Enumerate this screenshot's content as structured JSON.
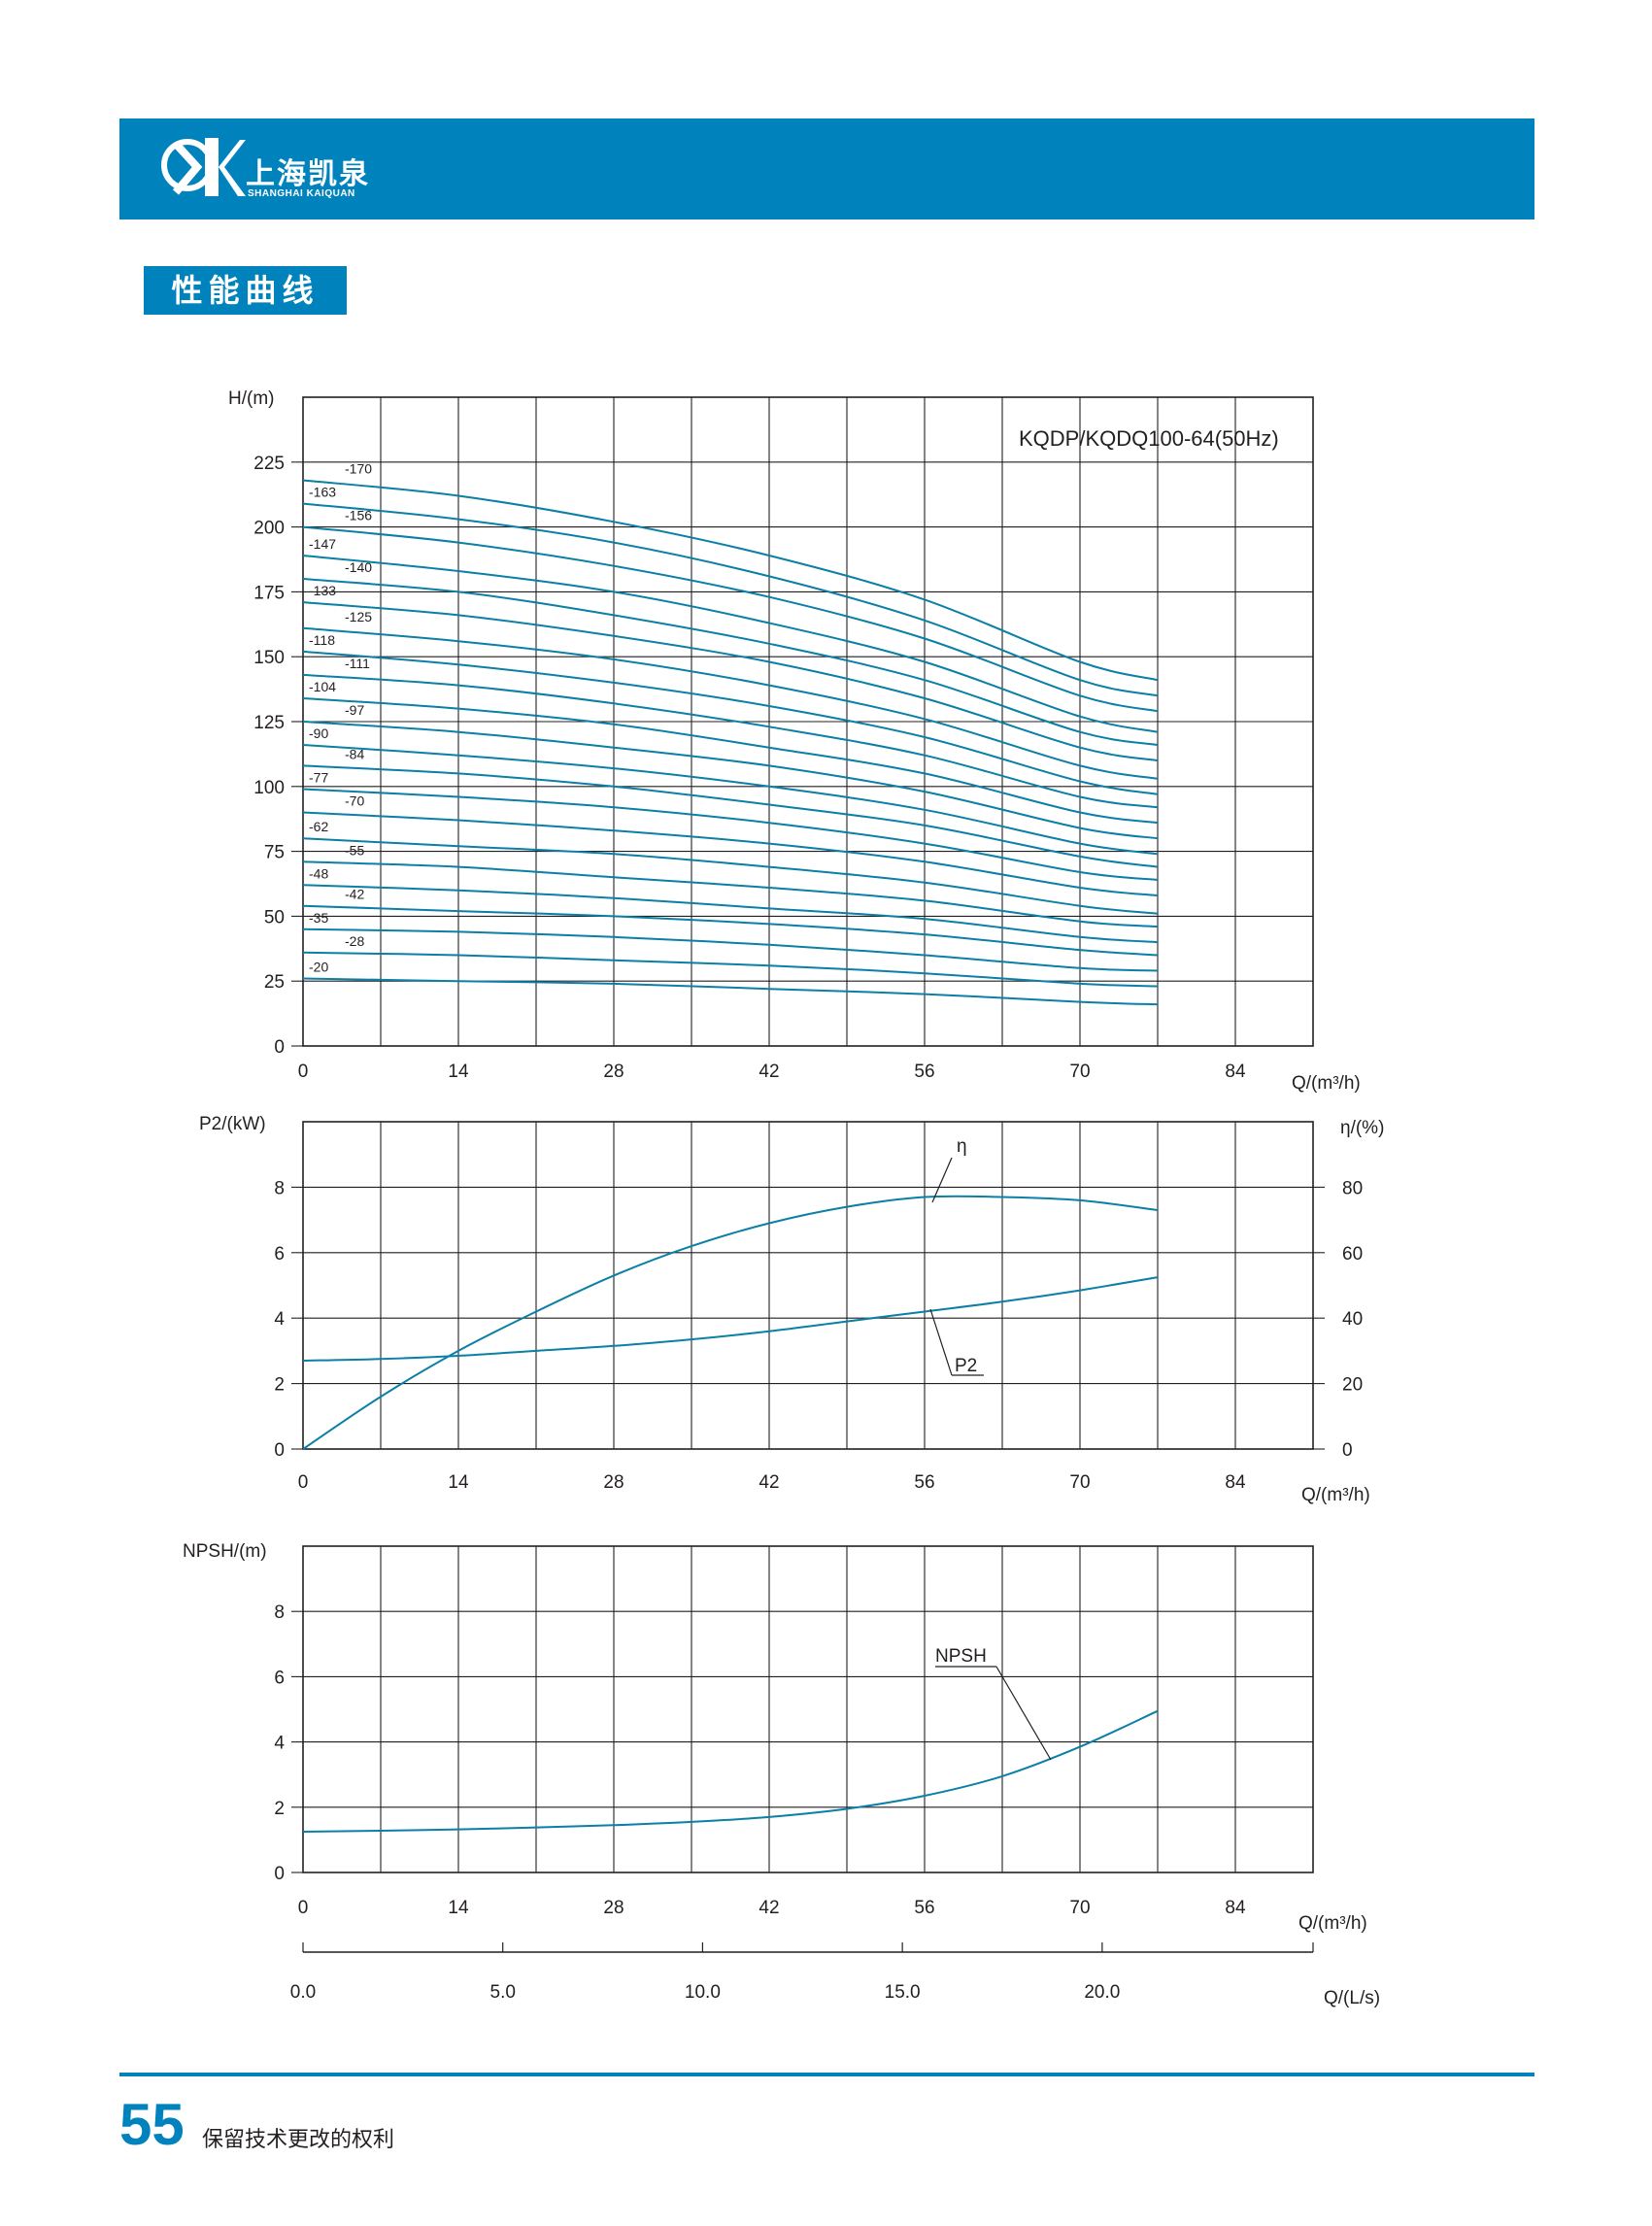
{
  "header": {
    "brand_cn": "上海凯泉",
    "brand_en": "SHANGHAI KAIQUAN",
    "logo_icon": "kaiquan-logo-icon",
    "accent_color": "#0083bd"
  },
  "section_title": "性能曲线",
  "footer": {
    "page_number": "55",
    "note": "保留技术更改的权利"
  },
  "chart_data": [
    {
      "type": "line",
      "title": "KQDP/KQDQ100-64(50Hz)",
      "ylabel": "H/(m)",
      "xlabel": "Q/(m³/h)",
      "x_ticks": [
        0,
        14,
        28,
        42,
        56,
        70,
        84
      ],
      "y_ticks": [
        0,
        25,
        50,
        75,
        100,
        125,
        150,
        175,
        200,
        225
      ],
      "xlim": [
        0,
        91
      ],
      "ylim": [
        0,
        250
      ],
      "grid": true,
      "curve_color": "#0b7fa6",
      "stage_labels": [
        "-170",
        "-163",
        "-156",
        "-147",
        "-140",
        "-133",
        "-125",
        "-118",
        "-111",
        "-104",
        "-97",
        "-90",
        "-84",
        "-77",
        "-70",
        "-62",
        "-55",
        "-48",
        "-42",
        "-35",
        "-28",
        "-20"
      ],
      "series": [
        {
          "name": "-170",
          "x": [
            0,
            14,
            28,
            42,
            56,
            70,
            77
          ],
          "y": [
            218,
            212,
            202,
            189,
            172,
            148,
            141
          ]
        },
        {
          "name": "-163",
          "x": [
            0,
            14,
            28,
            42,
            56,
            70,
            77
          ],
          "y": [
            209,
            203,
            194,
            181,
            164,
            141,
            135
          ]
        },
        {
          "name": "-156",
          "x": [
            0,
            14,
            28,
            42,
            56,
            70,
            77
          ],
          "y": [
            200,
            194,
            185,
            173,
            157,
            135,
            129
          ]
        },
        {
          "name": "-147",
          "x": [
            0,
            14,
            28,
            42,
            56,
            70,
            77
          ],
          "y": [
            189,
            183,
            175,
            163,
            148,
            127,
            121
          ]
        },
        {
          "name": "-140",
          "x": [
            0,
            14,
            28,
            42,
            56,
            70,
            77
          ],
          "y": [
            180,
            175,
            166,
            155,
            141,
            121,
            116
          ]
        },
        {
          "name": "-133",
          "x": [
            0,
            14,
            28,
            42,
            56,
            70,
            77
          ],
          "y": [
            171,
            166,
            158,
            148,
            134,
            115,
            110
          ]
        },
        {
          "name": "-125",
          "x": [
            0,
            14,
            28,
            42,
            56,
            70,
            77
          ],
          "y": [
            161,
            156,
            149,
            139,
            126,
            108,
            103
          ]
        },
        {
          "name": "-118",
          "x": [
            0,
            14,
            28,
            42,
            56,
            70,
            77
          ],
          "y": [
            152,
            147,
            140,
            131,
            119,
            102,
            97
          ]
        },
        {
          "name": "-111",
          "x": [
            0,
            14,
            28,
            42,
            56,
            70,
            77
          ],
          "y": [
            143,
            139,
            132,
            123,
            112,
            96,
            92
          ]
        },
        {
          "name": "-104",
          "x": [
            0,
            14,
            28,
            42,
            56,
            70,
            77
          ],
          "y": [
            134,
            130,
            124,
            115,
            105,
            90,
            86
          ]
        },
        {
          "name": "-97",
          "x": [
            0,
            14,
            28,
            42,
            56,
            70,
            77
          ],
          "y": [
            125,
            121,
            115,
            108,
            98,
            84,
            80
          ]
        },
        {
          "name": "-90",
          "x": [
            0,
            14,
            28,
            42,
            56,
            70,
            77
          ],
          "y": [
            116,
            112,
            107,
            100,
            91,
            78,
            74
          ]
        },
        {
          "name": "-84",
          "x": [
            0,
            14,
            28,
            42,
            56,
            70,
            77
          ],
          "y": [
            108,
            105,
            100,
            93,
            85,
            73,
            69
          ]
        },
        {
          "name": "-77",
          "x": [
            0,
            14,
            28,
            42,
            56,
            70,
            77
          ],
          "y": [
            99,
            96,
            92,
            86,
            78,
            67,
            64
          ]
        },
        {
          "name": "-70",
          "x": [
            0,
            14,
            28,
            42,
            56,
            70,
            77
          ],
          "y": [
            90,
            87,
            83,
            78,
            71,
            61,
            58
          ]
        },
        {
          "name": "-62",
          "x": [
            0,
            14,
            28,
            42,
            56,
            70,
            77
          ],
          "y": [
            80,
            77,
            74,
            69,
            63,
            54,
            51
          ]
        },
        {
          "name": "-55",
          "x": [
            0,
            14,
            28,
            42,
            56,
            70,
            77
          ],
          "y": [
            71,
            69,
            65,
            61,
            56,
            48,
            46
          ]
        },
        {
          "name": "-48",
          "x": [
            0,
            14,
            28,
            42,
            56,
            70,
            77
          ],
          "y": [
            62,
            60,
            57,
            53,
            49,
            42,
            40
          ]
        },
        {
          "name": "-42",
          "x": [
            0,
            14,
            28,
            42,
            56,
            70,
            77
          ],
          "y": [
            54,
            52,
            50,
            47,
            43,
            37,
            35
          ]
        },
        {
          "name": "-35",
          "x": [
            0,
            14,
            28,
            42,
            56,
            70,
            77
          ],
          "y": [
            45,
            44,
            42,
            39,
            35,
            30,
            29
          ]
        },
        {
          "name": "-28",
          "x": [
            0,
            14,
            28,
            42,
            56,
            70,
            77
          ],
          "y": [
            36,
            35,
            33,
            31,
            28,
            24,
            23
          ]
        },
        {
          "name": "-20",
          "x": [
            0,
            14,
            28,
            42,
            56,
            70,
            77
          ],
          "y": [
            26,
            25,
            24,
            22,
            20,
            17,
            16
          ]
        }
      ]
    },
    {
      "type": "line",
      "ylabel": "P2/(kW)",
      "y2label": "η/(%)",
      "xlabel": "Q/(m³/h)",
      "x_ticks": [
        0,
        14,
        28,
        42,
        56,
        70,
        84
      ],
      "y_ticks": [
        0,
        2,
        4,
        6,
        8
      ],
      "y2_ticks": [
        0,
        20,
        40,
        60,
        80
      ],
      "xlim": [
        0,
        91
      ],
      "ylim": [
        0,
        10
      ],
      "y2lim": [
        0,
        100
      ],
      "grid": true,
      "curve_color": "#0b7fa6",
      "series": [
        {
          "name": "η",
          "axis": "right",
          "x": [
            0,
            7,
            14,
            21,
            28,
            35,
            42,
            49,
            56,
            63,
            70,
            77
          ],
          "y": [
            0,
            16,
            30,
            42,
            53,
            62,
            69,
            74,
            77,
            77,
            76,
            73
          ]
        },
        {
          "name": "P2",
          "axis": "left",
          "x": [
            0,
            7,
            14,
            21,
            28,
            35,
            42,
            49,
            56,
            63,
            70,
            77
          ],
          "y": [
            2.7,
            2.75,
            2.85,
            3.0,
            3.15,
            3.35,
            3.6,
            3.9,
            4.2,
            4.5,
            4.85,
            5.25
          ]
        }
      ]
    },
    {
      "type": "line",
      "ylabel": "NPSH/(m)",
      "xlabel": "Q/(m³/h)",
      "x2label": "Q/(L/s)",
      "x_ticks": [
        0,
        14,
        28,
        42,
        56,
        70,
        84
      ],
      "x2_ticks": [
        "0.0",
        "5.0",
        "10.0",
        "15.0",
        "20.0"
      ],
      "y_ticks": [
        0,
        2,
        4,
        6,
        8
      ],
      "xlim": [
        0,
        91
      ],
      "ylim": [
        0,
        10
      ],
      "grid": true,
      "curve_color": "#0b7fa6",
      "series": [
        {
          "name": "NPSH",
          "x": [
            0,
            7,
            14,
            21,
            28,
            35,
            42,
            49,
            56,
            63,
            70,
            77
          ],
          "y": [
            1.25,
            1.28,
            1.32,
            1.38,
            1.45,
            1.55,
            1.7,
            1.95,
            2.35,
            2.95,
            3.85,
            4.95
          ]
        }
      ]
    }
  ]
}
